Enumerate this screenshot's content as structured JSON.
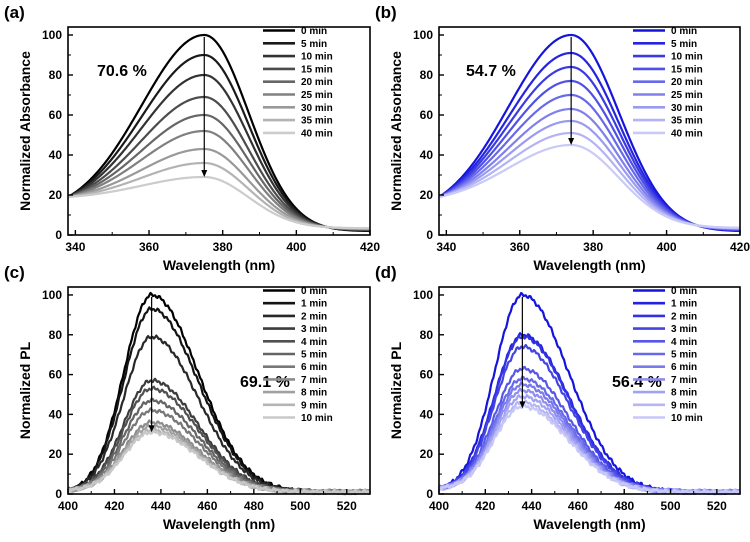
{
  "chart_data": [
    {
      "panel_label": "(a)",
      "type": "line",
      "xlabel": "Wavelength (nm)",
      "ylabel": "Normalized Absorbance",
      "xlim": [
        338,
        420
      ],
      "ylim": [
        0,
        104
      ],
      "xticks": [
        340,
        360,
        380,
        400,
        420
      ],
      "yticks": [
        0,
        20,
        40,
        60,
        80,
        100
      ],
      "annotation": "70.6 %",
      "peak_x": 375,
      "start_y": 19,
      "end_y": [
        2,
        4
      ],
      "arrow": [
        99,
        29
      ],
      "shape": {
        "sigma_left": 17,
        "sigma_right": 12,
        "base_left": 17,
        "base_right": 2
      },
      "legend_color": "#000000",
      "series": [
        {
          "name": "0 min",
          "peak": 100,
          "color": "#000000"
        },
        {
          "name": "5 min",
          "peak": 90,
          "color": "#1a1a1a"
        },
        {
          "name": "10 min",
          "peak": 80,
          "color": "#333333"
        },
        {
          "name": "15 min",
          "peak": 69,
          "color": "#4c4c4c"
        },
        {
          "name": "20 min",
          "peak": 60,
          "color": "#666666"
        },
        {
          "name": "25 min",
          "peak": 52,
          "color": "#808080"
        },
        {
          "name": "30 min",
          "peak": 43,
          "color": "#999999"
        },
        {
          "name": "35 min",
          "peak": 36,
          "color": "#b3b3b3"
        },
        {
          "name": "40 min",
          "peak": 29,
          "color": "#cccccc"
        }
      ]
    },
    {
      "panel_label": "(b)",
      "type": "line",
      "xlabel": "Wavelength (nm)",
      "ylabel": "Normalized Absorbance",
      "xlim": [
        338,
        420
      ],
      "ylim": [
        0,
        104
      ],
      "xticks": [
        340,
        360,
        380,
        400,
        420
      ],
      "yticks": [
        0,
        20,
        40,
        60,
        80,
        100
      ],
      "annotation": "54.7 %",
      "peak_x": 374,
      "start_y": 19,
      "end_y": [
        2,
        5
      ],
      "arrow": [
        99,
        45
      ],
      "shape": {
        "sigma_left": 17,
        "sigma_right": 13,
        "base_left": 17,
        "base_right": 2
      },
      "legend_color": "#1a1adc",
      "series": [
        {
          "name": "0 min",
          "peak": 100,
          "color": "#1414dc"
        },
        {
          "name": "5 min",
          "peak": 91,
          "color": "#2525e0"
        },
        {
          "name": "10 min",
          "peak": 84,
          "color": "#3a3ae3"
        },
        {
          "name": "15 min",
          "peak": 77,
          "color": "#5050e6"
        },
        {
          "name": "20 min",
          "peak": 70,
          "color": "#6868ea"
        },
        {
          "name": "25 min",
          "peak": 63,
          "color": "#8080ed"
        },
        {
          "name": "30 min",
          "peak": 57,
          "color": "#9a9af1"
        },
        {
          "name": "35 min",
          "peak": 51,
          "color": "#b3b3f5"
        },
        {
          "name": "40 min",
          "peak": 45,
          "color": "#cacaf8"
        }
      ]
    },
    {
      "panel_label": "(c)",
      "type": "line",
      "xlabel": "Wavelength (nm)",
      "ylabel": "Normalized PL",
      "xlim": [
        400,
        530
      ],
      "ylim": [
        0,
        104
      ],
      "xticks": [
        400,
        420,
        440,
        460,
        480,
        500,
        520
      ],
      "yticks": [
        0,
        20,
        40,
        60,
        80,
        100
      ],
      "annotation": "69.1 %",
      "peak_x": 436,
      "start_y": 2,
      "end_y": [
        1,
        1
      ],
      "arrow": [
        99,
        31
      ],
      "shape": {
        "sigma_left": 12,
        "sigma_right": 20,
        "base_left": 0,
        "base_right": 0
      },
      "legend_color": "#000000",
      "series": [
        {
          "name": "0 min",
          "peak": 100,
          "color": "#000000"
        },
        {
          "name": "1 min",
          "peak": 93,
          "color": "#141414"
        },
        {
          "name": "2 min",
          "peak": 79,
          "color": "#282828"
        },
        {
          "name": "3 min",
          "peak": 57,
          "color": "#3c3c3c"
        },
        {
          "name": "4 min",
          "peak": 53,
          "color": "#505050"
        },
        {
          "name": "5 min",
          "peak": 47,
          "color": "#646464"
        },
        {
          "name": "6 min",
          "peak": 42,
          "color": "#787878"
        },
        {
          "name": "7 min",
          "peak": 36,
          "color": "#8c8c8c"
        },
        {
          "name": "8 min",
          "peak": 34,
          "color": "#a0a0a0"
        },
        {
          "name": "9 min",
          "peak": 32,
          "color": "#b4b4b4"
        },
        {
          "name": "10 min",
          "peak": 31,
          "color": "#c8c8c8"
        }
      ]
    },
    {
      "panel_label": "(d)",
      "type": "line",
      "xlabel": "Wavelength (nm)",
      "ylabel": "Normalized PL",
      "xlim": [
        400,
        530
      ],
      "ylim": [
        0,
        104
      ],
      "xticks": [
        400,
        420,
        440,
        460,
        480,
        500,
        520
      ],
      "yticks": [
        0,
        20,
        40,
        60,
        80,
        100
      ],
      "annotation": "56.4 %",
      "peak_x": 436,
      "start_y": 3,
      "end_y": [
        1,
        1
      ],
      "arrow": [
        99,
        43
      ],
      "shape": {
        "sigma_left": 12,
        "sigma_right": 20,
        "base_left": 0,
        "base_right": 0
      },
      "legend_color": "#1a1adc",
      "series": [
        {
          "name": "0 min",
          "peak": 100,
          "color": "#1414dc"
        },
        {
          "name": "1 min",
          "peak": 80,
          "color": "#2222df"
        },
        {
          "name": "2 min",
          "peak": 79,
          "color": "#3232e2"
        },
        {
          "name": "3 min",
          "peak": 74,
          "color": "#4444e5"
        },
        {
          "name": "4 min",
          "peak": 63,
          "color": "#5656e8"
        },
        {
          "name": "5 min",
          "peak": 58,
          "color": "#6868ea"
        },
        {
          "name": "6 min",
          "peak": 55,
          "color": "#7a7aed"
        },
        {
          "name": "7 min",
          "peak": 52,
          "color": "#8e8ef0"
        },
        {
          "name": "8 min",
          "peak": 49,
          "color": "#a2a2f2"
        },
        {
          "name": "9 min",
          "peak": 46,
          "color": "#b6b6f5"
        },
        {
          "name": "10 min",
          "peak": 44,
          "color": "#c8c8f8"
        }
      ]
    }
  ]
}
